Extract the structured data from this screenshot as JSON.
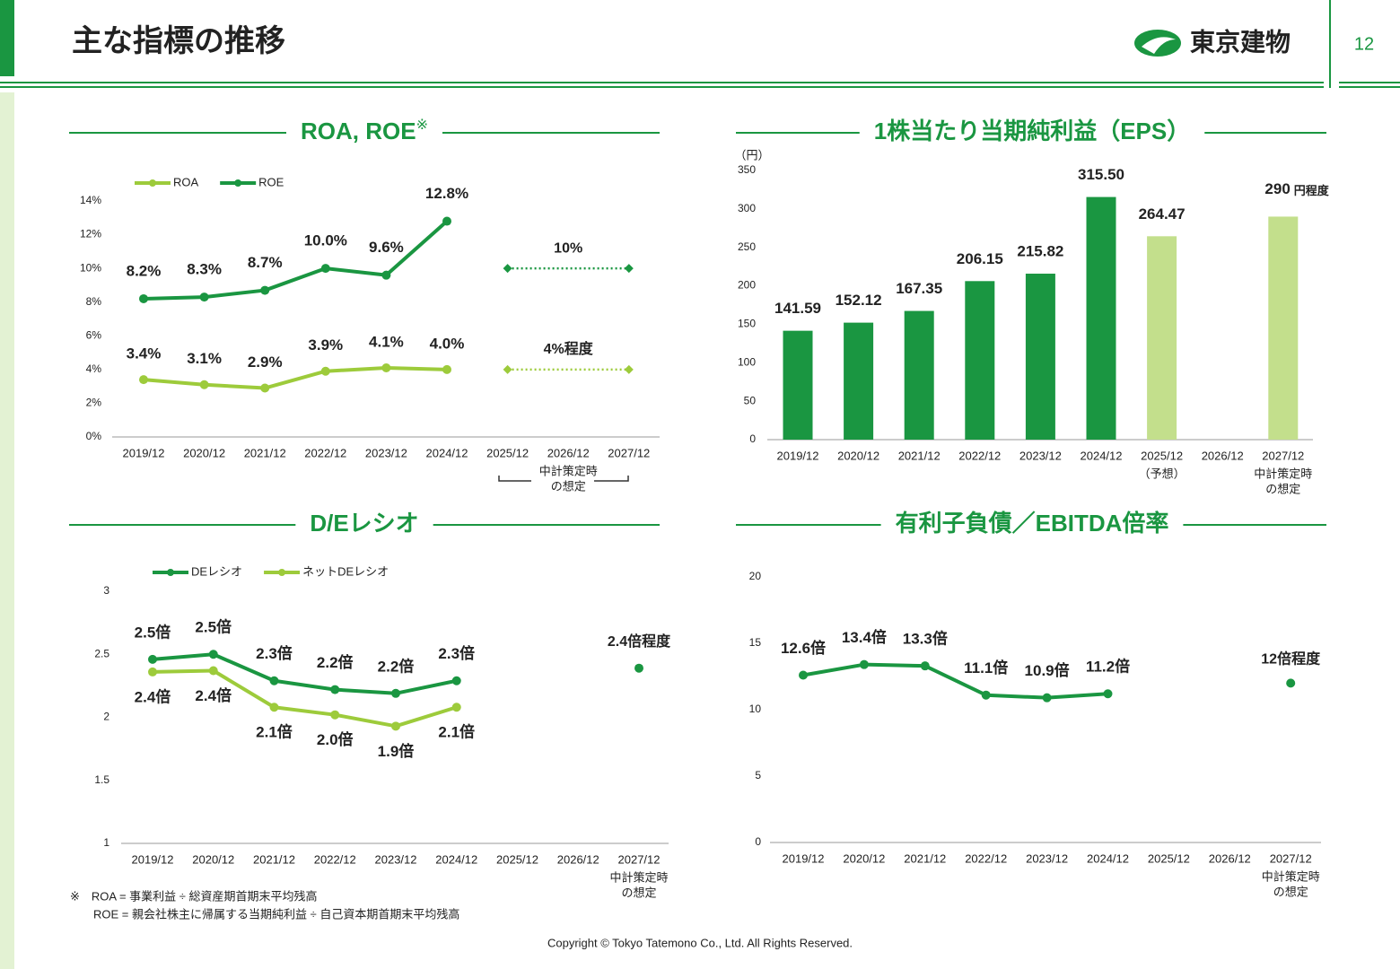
{
  "page": {
    "title": "主な指標の推移",
    "logo": "東京建物",
    "page_number": "12",
    "footnotes": [
      "※　ROA = 事業利益 ÷ 総資産期首期末平均残高",
      "ROE = 親会社株主に帰属する当期純利益 ÷ 自己資本期首期末平均残高"
    ],
    "copyright": "Copyright © Tokyo Tatemono Co., Ltd. All Rights Reserved."
  },
  "chart_data": [
    {
      "type": "line",
      "title": "ROA, ROE",
      "title_note": "※",
      "categories": [
        "2019/12",
        "2020/12",
        "2021/12",
        "2022/12",
        "2023/12",
        "2024/12",
        "2025/12",
        "2026/12",
        "2027/12"
      ],
      "series": [
        {
          "name": "ROA",
          "color": "#9dcb3b",
          "values": [
            3.4,
            3.1,
            2.9,
            3.9,
            4.1,
            4.0,
            null,
            null,
            null
          ],
          "value_labels": [
            "3.4%",
            "3.1%",
            "2.9%",
            "3.9%",
            "4.1%",
            "4.0%",
            null,
            null,
            null
          ]
        },
        {
          "name": "ROE",
          "color": "#1a9641",
          "values": [
            8.2,
            8.3,
            8.7,
            10.0,
            9.6,
            12.8,
            null,
            null,
            null
          ],
          "value_labels": [
            "8.2%",
            "8.3%",
            "8.7%",
            "10.0%",
            "9.6%",
            "12.8%",
            null,
            null,
            null
          ]
        }
      ],
      "targets": [
        {
          "color": "#9dcb3b",
          "values": [
            null,
            null,
            null,
            null,
            null,
            null,
            4,
            null,
            4
          ],
          "value_label": "4%程度"
        },
        {
          "color": "#1a9641",
          "values": [
            null,
            null,
            null,
            null,
            null,
            null,
            10,
            null,
            10
          ],
          "value_label": "10%"
        }
      ],
      "target_marker": "diamond",
      "target_line": "dotted",
      "category_notes": [
        null,
        null,
        null,
        null,
        null,
        null,
        null,
        [
          "中計策定時",
          "の想定"
        ],
        null
      ],
      "ylim": [
        0,
        14
      ],
      "yticks": [
        {
          "value": 0,
          "label": "0%"
        },
        {
          "value": 2,
          "label": "2%"
        },
        {
          "value": 4,
          "label": "4%"
        },
        {
          "value": 6,
          "label": "6%"
        },
        {
          "value": 8,
          "label": "8%"
        },
        {
          "value": 10,
          "label": "10%"
        },
        {
          "value": 12,
          "label": "12%"
        },
        {
          "value": 14,
          "label": "14%"
        }
      ],
      "legend": "top-left"
    },
    {
      "type": "bar",
      "title": "1株当たり当期純利益（EPS）",
      "y_label": "（円）",
      "categories": [
        "2019/12",
        "2020/12",
        "2021/12",
        "2022/12",
        "2023/12",
        "2024/12",
        "2025/12",
        "2026/12",
        "2027/12"
      ],
      "values": [
        141.59,
        152.12,
        167.35,
        206.15,
        215.82,
        315.5,
        264.47,
        null,
        290
      ],
      "value_labels": [
        "141.59",
        "152.12",
        "167.35",
        "206.15",
        "215.82",
        "315.50",
        "264.47",
        null,
        "290"
      ],
      "value_notes": [
        null,
        null,
        null,
        null,
        null,
        null,
        null,
        null,
        "円程度"
      ],
      "colors": [
        "#1a9641",
        "#1a9641",
        "#1a9641",
        "#1a9641",
        "#1a9641",
        "#1a9641",
        "#c3df8c",
        null,
        "#c3df8c"
      ],
      "category_notes": [
        null,
        null,
        null,
        null,
        null,
        null,
        [
          "（予想）"
        ],
        null,
        [
          "中計策定時",
          "の想定"
        ]
      ],
      "ylim": [
        0,
        350
      ],
      "yticks": [
        0,
        50,
        100,
        150,
        200,
        250,
        300,
        350
      ]
    },
    {
      "type": "line",
      "title": "D/Eレシオ",
      "categories": [
        "2019/12",
        "2020/12",
        "2021/12",
        "2022/12",
        "2023/12",
        "2024/12",
        "2025/12",
        "2026/12",
        "2027/12"
      ],
      "series": [
        {
          "name": "DEレシオ",
          "color": "#1a9641",
          "values": [
            2.46,
            2.5,
            2.29,
            2.22,
            2.19,
            2.29,
            null,
            null,
            null
          ],
          "value_labels": [
            "2.5倍",
            "2.5倍",
            "2.3倍",
            "2.2倍",
            "2.2倍",
            "2.3倍",
            null,
            null,
            null
          ]
        },
        {
          "name": "ネットDEレシオ",
          "color": "#9dcb3b",
          "values": [
            2.36,
            2.37,
            2.08,
            2.02,
            1.93,
            2.08,
            null,
            null,
            null
          ],
          "value_labels": [
            "2.4倍",
            "2.4倍",
            "2.1倍",
            "2.0倍",
            "1.9倍",
            "2.1倍",
            null,
            null,
            null
          ]
        }
      ],
      "targets": [
        {
          "color": "#1a9641",
          "values": [
            null,
            null,
            null,
            null,
            null,
            null,
            null,
            null,
            2.39
          ],
          "value_label": "2.4倍程度"
        }
      ],
      "target_marker": "circle",
      "category_notes": [
        null,
        null,
        null,
        null,
        null,
        null,
        null,
        null,
        [
          "中計策定時",
          "の想定"
        ]
      ],
      "ylim": [
        1,
        3
      ],
      "yticks": [
        1,
        1.5,
        2,
        2.5,
        3
      ],
      "legend": "top-left"
    },
    {
      "type": "line",
      "title": "有利子負債／EBITDA倍率",
      "categories": [
        "2019/12",
        "2020/12",
        "2021/12",
        "2022/12",
        "2023/12",
        "2024/12",
        "2025/12",
        "2026/12",
        "2027/12"
      ],
      "series": [
        {
          "color": "#1a9641",
          "values": [
            12.6,
            13.4,
            13.3,
            11.1,
            10.9,
            11.2,
            null,
            null,
            null
          ],
          "value_labels": [
            "12.6倍",
            "13.4倍",
            "13.3倍",
            "11.1倍",
            "10.9倍",
            "11.2倍",
            null,
            null,
            null
          ]
        }
      ],
      "targets": [
        {
          "color": "#1a9641",
          "values": [
            null,
            null,
            null,
            null,
            null,
            null,
            null,
            null,
            12
          ],
          "value_label": "12倍程度"
        }
      ],
      "target_marker": "circle",
      "category_notes": [
        null,
        null,
        null,
        null,
        null,
        null,
        null,
        null,
        [
          "中計策定時",
          "の想定"
        ]
      ],
      "ylim": [
        0,
        20
      ],
      "yticks": [
        0,
        5,
        10,
        15,
        20
      ]
    }
  ]
}
